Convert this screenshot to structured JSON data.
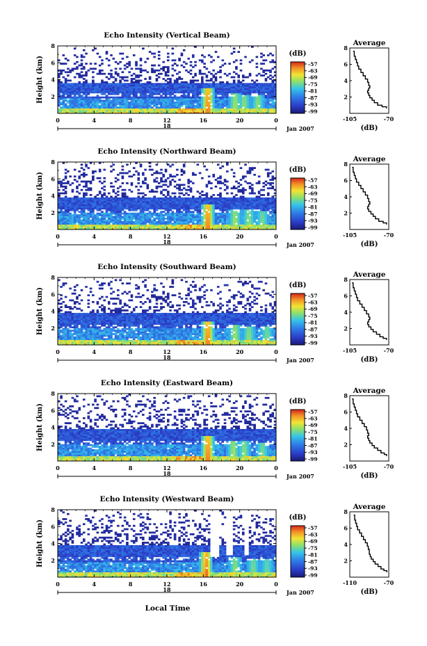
{
  "chart_data": [
    {
      "type": "heatmap",
      "title": "Echo Intensity (Vertical Beam)",
      "ylabel": "Height (km)",
      "xlim": [
        0,
        24
      ],
      "ylim": [
        0,
        8
      ],
      "x_ticks": [
        "0",
        "4",
        "8",
        "12",
        "16",
        "20",
        "0"
      ],
      "y_ticks": [
        "2",
        "4",
        "6",
        "8"
      ],
      "date_labels": {
        "day": "18",
        "month": "Jan 2007"
      },
      "colorbar": {
        "label": "(dB)",
        "ticks": [
          "-57",
          "-63",
          "-69",
          "-75",
          "-81",
          "-87",
          "-93",
          "-99"
        ]
      },
      "layers": {
        "blue_top_km": 3.6,
        "echo_top_km": 7.2,
        "blue_mid_km": 1.8,
        "surface_km": 0.5
      },
      "bursts": [
        {
          "x": 16.5,
          "top": 3.0,
          "strength": 1.0
        },
        {
          "x": 19.5,
          "top": 2.3,
          "strength": 0.55
        },
        {
          "x": 20.5,
          "top": 2.2,
          "strength": 0.5
        },
        {
          "x": 22.0,
          "top": 2.1,
          "strength": 0.5
        }
      ],
      "clear_gaps": [],
      "average_profile": {
        "title": "Average",
        "xlabel": "(dB)",
        "xlim": [
          -105,
          -70
        ],
        "ylim": [
          0,
          8
        ],
        "x_ticks": [
          "-105",
          "-70"
        ],
        "y_ticks": [
          "2",
          "4",
          "6",
          "8"
        ],
        "x": [
          -102,
          -101,
          -100,
          -99,
          -98,
          -97,
          -95,
          -93,
          -91,
          -89,
          -88,
          -87,
          -88,
          -89,
          -88,
          -87,
          -85,
          -83,
          -80,
          -76,
          -72
        ],
        "y": [
          7.6,
          7.0,
          6.6,
          6.2,
          5.8,
          5.4,
          5.0,
          4.6,
          4.2,
          3.8,
          3.4,
          3.1,
          2.8,
          2.5,
          2.2,
          1.9,
          1.6,
          1.3,
          1.0,
          0.8,
          0.6
        ]
      }
    },
    {
      "type": "heatmap",
      "title": "Echo Intensity (Northward Beam)",
      "ylabel": "Height (km)",
      "xlim": [
        0,
        24
      ],
      "ylim": [
        0,
        8
      ],
      "x_ticks": [
        "0",
        "4",
        "8",
        "12",
        "16",
        "20",
        "0"
      ],
      "y_ticks": [
        "2",
        "4",
        "6",
        "8"
      ],
      "date_labels": {
        "day": "18",
        "month": "Jan 2007"
      },
      "colorbar": {
        "label": "(dB)",
        "ticks": [
          "-57",
          "-63",
          "-69",
          "-75",
          "-81",
          "-87",
          "-93",
          "-99"
        ]
      },
      "layers": {
        "blue_top_km": 3.8,
        "echo_top_km": 7.8,
        "blue_mid_km": 1.9,
        "surface_km": 0.5
      },
      "bursts": [
        {
          "x": 16.5,
          "top": 3.0,
          "strength": 1.0
        },
        {
          "x": 19.5,
          "top": 2.4,
          "strength": 0.55
        },
        {
          "x": 21.0,
          "top": 2.3,
          "strength": 0.5
        },
        {
          "x": 22.5,
          "top": 2.2,
          "strength": 0.45
        }
      ],
      "clear_gaps": [],
      "average_profile": {
        "title": "Average",
        "xlabel": "(dB)",
        "xlim": [
          -105,
          -70
        ],
        "ylim": [
          0,
          8
        ],
        "x": [
          -103,
          -102,
          -101,
          -100,
          -99,
          -97,
          -95,
          -93,
          -91,
          -89,
          -88,
          -87,
          -88,
          -89,
          -88,
          -86,
          -84,
          -82,
          -79,
          -75,
          -72
        ],
        "y": [
          7.6,
          7.0,
          6.6,
          6.2,
          5.8,
          5.4,
          5.0,
          4.6,
          4.2,
          3.8,
          3.4,
          3.1,
          2.8,
          2.5,
          2.2,
          1.9,
          1.6,
          1.3,
          1.0,
          0.8,
          0.6
        ],
        "x_ticks": [
          "-105",
          "-70"
        ],
        "y_ticks": [
          "2",
          "4",
          "6",
          "8"
        ]
      }
    },
    {
      "type": "heatmap",
      "title": "Echo Intensity (Southward Beam)",
      "ylabel": "Height (km)",
      "xlim": [
        0,
        24
      ],
      "ylim": [
        0,
        8
      ],
      "x_ticks": [
        "0",
        "4",
        "8",
        "12",
        "16",
        "20",
        "0"
      ],
      "y_ticks": [
        "2",
        "4",
        "6",
        "8"
      ],
      "date_labels": {
        "day": "18",
        "month": "Jan 2007"
      },
      "colorbar": {
        "label": "(dB)",
        "ticks": [
          "-57",
          "-63",
          "-69",
          "-75",
          "-81",
          "-87",
          "-93",
          "-99"
        ]
      },
      "layers": {
        "blue_top_km": 3.7,
        "echo_top_km": 7.6,
        "blue_mid_km": 1.9,
        "surface_km": 0.5
      },
      "bursts": [
        {
          "x": 16.5,
          "top": 2.8,
          "strength": 1.0
        },
        {
          "x": 19.5,
          "top": 2.3,
          "strength": 0.55
        },
        {
          "x": 21.0,
          "top": 2.2,
          "strength": 0.5
        },
        {
          "x": 23.0,
          "top": 2.1,
          "strength": 0.45
        }
      ],
      "clear_gaps": [],
      "average_profile": {
        "title": "Average",
        "xlabel": "(dB)",
        "xlim": [
          -105,
          -70
        ],
        "ylim": [
          0,
          8
        ],
        "x": [
          -103,
          -102,
          -101,
          -100,
          -99,
          -98,
          -96,
          -94,
          -92,
          -90,
          -88,
          -87,
          -88,
          -89,
          -88,
          -86,
          -84,
          -81,
          -78,
          -75,
          -72
        ],
        "y": [
          7.6,
          7.0,
          6.6,
          6.2,
          5.8,
          5.4,
          5.0,
          4.6,
          4.2,
          3.8,
          3.4,
          3.1,
          2.8,
          2.5,
          2.2,
          1.9,
          1.6,
          1.3,
          1.0,
          0.8,
          0.6
        ],
        "x_ticks": [
          "-105",
          "-70"
        ],
        "y_ticks": [
          "2",
          "4",
          "6",
          "8"
        ]
      }
    },
    {
      "type": "heatmap",
      "title": "Echo Intensity (Eastward Beam)",
      "ylabel": "Height (km)",
      "xlim": [
        0,
        24
      ],
      "ylim": [
        0,
        8
      ],
      "x_ticks": [
        "0",
        "4",
        "8",
        "12",
        "16",
        "20",
        "0"
      ],
      "y_ticks": [
        "2",
        "4",
        "6",
        "8"
      ],
      "date_labels": {
        "day": "18",
        "month": "Jan 2007"
      },
      "colorbar": {
        "label": "(dB)",
        "ticks": [
          "-57",
          "-63",
          "-69",
          "-75",
          "-81",
          "-87",
          "-93",
          "-99"
        ]
      },
      "layers": {
        "blue_top_km": 3.8,
        "echo_top_km": 7.8,
        "blue_mid_km": 1.9,
        "surface_km": 0.5
      },
      "bursts": [
        {
          "x": 16.5,
          "top": 3.0,
          "strength": 1.0
        },
        {
          "x": 19.3,
          "top": 2.4,
          "strength": 0.55
        },
        {
          "x": 20.5,
          "top": 2.3,
          "strength": 0.5
        },
        {
          "x": 22.5,
          "top": 2.2,
          "strength": 0.45
        }
      ],
      "clear_gaps": [],
      "average_profile": {
        "title": "Average",
        "xlabel": "(dB)",
        "xlim": [
          -105,
          -70
        ],
        "ylim": [
          0,
          8
        ],
        "x": [
          -103,
          -102,
          -101,
          -100,
          -99,
          -98,
          -96,
          -94,
          -92,
          -90,
          -89,
          -88,
          -89,
          -88,
          -87,
          -85,
          -83,
          -80,
          -77,
          -74,
          -72
        ],
        "y": [
          7.6,
          7.0,
          6.6,
          6.2,
          5.8,
          5.4,
          5.0,
          4.6,
          4.2,
          3.8,
          3.4,
          3.1,
          2.8,
          2.5,
          2.2,
          1.9,
          1.6,
          1.3,
          1.0,
          0.8,
          0.6
        ],
        "x_ticks": [
          "-105",
          "-70"
        ],
        "y_ticks": [
          "2",
          "4",
          "6",
          "8"
        ]
      }
    },
    {
      "type": "heatmap",
      "title": "Echo Intensity (Westward Beam)",
      "ylabel": "Height (km)",
      "xlim": [
        0,
        24
      ],
      "ylim": [
        0,
        8
      ],
      "x_ticks": [
        "0",
        "4",
        "8",
        "12",
        "16",
        "20",
        "0"
      ],
      "y_ticks": [
        "2",
        "4",
        "6",
        "8"
      ],
      "date_labels": {
        "day": "18",
        "month": "Jan 2007"
      },
      "colorbar": {
        "label": "(dB)",
        "ticks": [
          "-57",
          "-63",
          "-69",
          "-75",
          "-81",
          "-87",
          "-93",
          "-99"
        ]
      },
      "layers": {
        "blue_top_km": 3.8,
        "echo_top_km": 7.8,
        "blue_mid_km": 1.8,
        "surface_km": 0.5
      },
      "bursts": [
        {
          "x": 16.3,
          "top": 3.0,
          "strength": 1.0
        },
        {
          "x": 19.5,
          "top": 2.3,
          "strength": 0.5
        },
        {
          "x": 21.5,
          "top": 2.2,
          "strength": 0.45
        },
        {
          "x": 23.0,
          "top": 2.1,
          "strength": 0.4
        }
      ],
      "clear_gaps": [
        {
          "x0": 16.8,
          "x1": 17.8,
          "y0": 2.4,
          "y1": 8.0
        },
        {
          "x0": 18.6,
          "x1": 19.2,
          "y0": 2.6,
          "y1": 8.0
        },
        {
          "x0": 20.6,
          "x1": 21.0,
          "y0": 2.6,
          "y1": 8.0
        }
      ],
      "average_profile": {
        "title": "Average",
        "xlabel": "(dB)",
        "xlim": [
          -110,
          -70
        ],
        "ylim": [
          0,
          8
        ],
        "x": [
          -106,
          -105,
          -104,
          -103,
          -102,
          -100,
          -98,
          -96,
          -94,
          -92,
          -91,
          -90,
          -90,
          -89,
          -88,
          -86,
          -84,
          -81,
          -78,
          -75,
          -72
        ],
        "y": [
          7.6,
          7.0,
          6.6,
          6.2,
          5.8,
          5.4,
          5.0,
          4.6,
          4.2,
          3.8,
          3.4,
          3.1,
          2.8,
          2.5,
          2.2,
          1.9,
          1.6,
          1.3,
          1.0,
          0.8,
          0.6
        ],
        "x_ticks": [
          "-110",
          "-70"
        ],
        "y_ticks": [
          "2",
          "4",
          "6",
          "8"
        ]
      }
    }
  ],
  "figure": {
    "xlabel": "Local Time"
  }
}
